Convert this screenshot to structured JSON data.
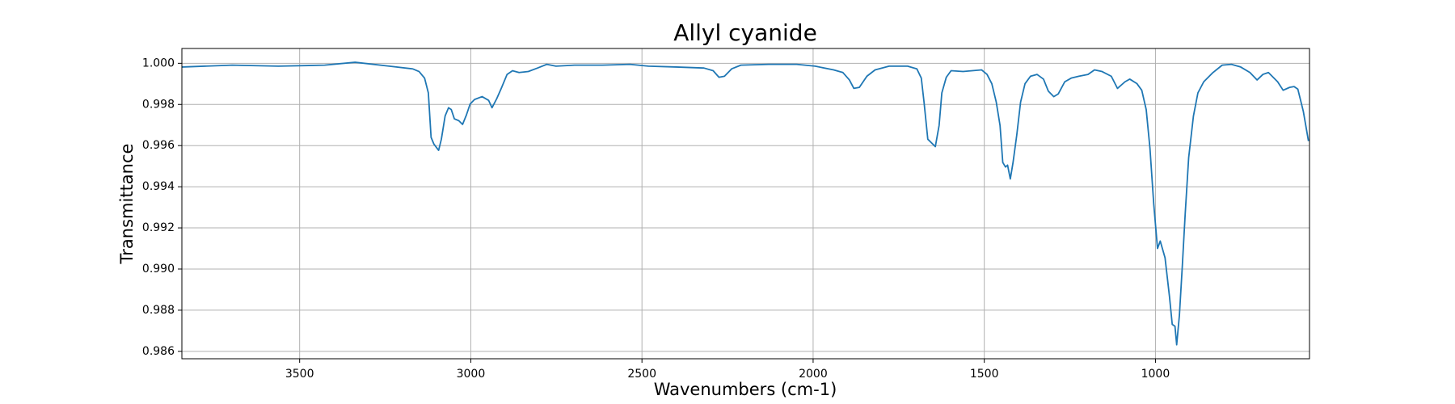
{
  "chart_data": {
    "type": "line",
    "title": "Allyl cyanide",
    "x_label": "Wavenumbers (cm-1)",
    "y_label": "Transmittance",
    "color": "#1f77b4",
    "grid": true,
    "xlim": [
      3844,
      550
    ],
    "ylim": [
      0.98564,
      1.00072
    ],
    "xticks": [
      3500,
      3000,
      2500,
      2000,
      1500,
      1000
    ],
    "yticks": [
      0.986,
      0.988,
      {
        "value": 0.99,
        "label": "0.990"
      },
      0.992,
      0.994,
      0.996,
      0.998,
      {
        "value": 1,
        "label": "1.000"
      }
    ],
    "x": [
      3843,
      3697,
      3562,
      3427,
      3338,
      3238,
      3170,
      3151,
      3135,
      3124,
      3116,
      3108,
      3094,
      3086,
      3075,
      3065,
      3057,
      3048,
      3035,
      3024,
      3013,
      3002,
      2989,
      2967,
      2948,
      2938,
      2924,
      2911,
      2894,
      2878,
      2859,
      2832,
      2805,
      2778,
      2751,
      2697,
      2616,
      2535,
      2481,
      2400,
      2319,
      2292,
      2275,
      2259,
      2238,
      2211,
      2130,
      2048,
      1994,
      1940,
      1913,
      1894,
      1881,
      1865,
      1843,
      1819,
      1778,
      1724,
      1697,
      1684,
      1676,
      1665,
      1651,
      1643,
      1632,
      1624,
      1611,
      1597,
      1562,
      1535,
      1508,
      1492,
      1478,
      1465,
      1454,
      1446,
      1438,
      1432,
      1424,
      1416,
      1405,
      1394,
      1381,
      1365,
      1346,
      1327,
      1313,
      1297,
      1284,
      1265,
      1246,
      1224,
      1197,
      1178,
      1156,
      1129,
      1111,
      1089,
      1075,
      1054,
      1040,
      1027,
      1016,
      1005,
      994,
      986,
      972,
      959,
      951,
      943,
      938,
      930,
      922,
      913,
      903,
      889,
      876,
      859,
      832,
      805,
      778,
      751,
      724,
      703,
      686,
      670,
      643,
      627,
      608,
      595,
      584,
      576,
      568,
      553
    ],
    "values": [
      0.99982,
      0.99991,
      0.99986,
      0.99991,
      1.00005,
      0.99986,
      0.99973,
      0.9996,
      0.99928,
      0.99856,
      0.9964,
      0.99608,
      0.99577,
      0.99631,
      0.99744,
      0.99784,
      0.99775,
      0.9973,
      0.99721,
      0.99703,
      0.99748,
      0.99802,
      0.99824,
      0.99838,
      0.9982,
      0.99784,
      0.99829,
      0.99878,
      0.99946,
      0.99964,
      0.99955,
      0.9996,
      0.99977,
      0.99995,
      0.99986,
      0.99991,
      0.99991,
      0.99995,
      0.99986,
      0.99982,
      0.99977,
      0.99964,
      0.99932,
      0.99937,
      0.99973,
      0.99991,
      0.99995,
      0.99995,
      0.99986,
      0.99968,
      0.99955,
      0.99919,
      0.99878,
      0.99883,
      0.99937,
      0.99968,
      0.99986,
      0.99986,
      0.99973,
      0.99928,
      0.99811,
      0.99631,
      0.99608,
      0.99595,
      0.99698,
      0.99856,
      0.99932,
      0.99964,
      0.9996,
      0.99964,
      0.99968,
      0.99946,
      0.99901,
      0.99811,
      0.99698,
      0.99518,
      0.99496,
      0.99505,
      0.99438,
      0.99518,
      0.99653,
      0.99811,
      0.99901,
      0.99937,
      0.99946,
      0.99923,
      0.99865,
      0.99838,
      0.99851,
      0.9991,
      0.99928,
      0.99937,
      0.99946,
      0.99968,
      0.9996,
      0.99937,
      0.99878,
      0.9991,
      0.99923,
      0.99901,
      0.99869,
      0.99775,
      0.99586,
      0.99316,
      0.991,
      0.99136,
      0.99055,
      0.98866,
      0.98731,
      0.98722,
      0.98632,
      0.98776,
      0.99001,
      0.99271,
      0.99541,
      0.99744,
      0.99856,
      0.9991,
      0.99955,
      0.99991,
      0.99995,
      0.99982,
      0.99955,
      0.99919,
      0.99946,
      0.99955,
      0.9991,
      0.99869,
      0.99883,
      0.99887,
      0.99874,
      0.9982,
      0.99766,
      0.99622
    ]
  }
}
